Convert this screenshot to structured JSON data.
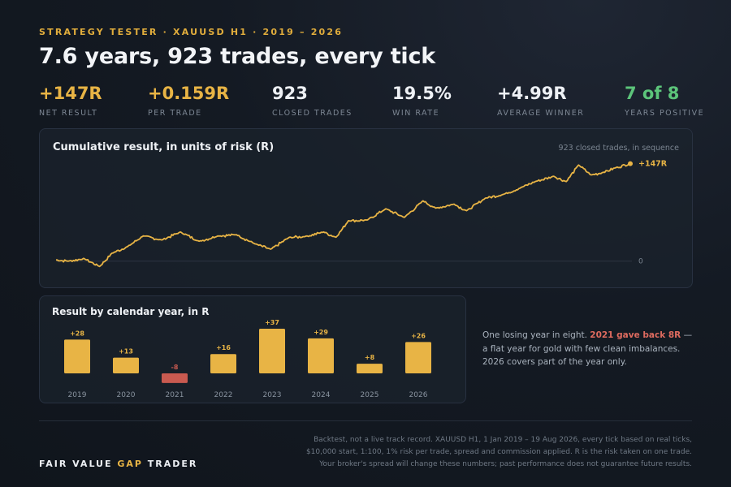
{
  "header": {
    "eyebrow": "STRATEGY TESTER  ·  XAUUSD H1  ·  2019 – 2026",
    "headline": "7.6 years, 923 trades, every tick"
  },
  "kpis": [
    {
      "value": "+147R",
      "label": "NET RESULT",
      "color": "#e8b445"
    },
    {
      "value": "+0.159R",
      "label": "PER TRADE",
      "color": "#e8b445"
    },
    {
      "value": "923",
      "label": "CLOSED TRADES",
      "color": "#eef1f5"
    },
    {
      "value": "19.5%",
      "label": "WIN RATE",
      "color": "#eef1f5"
    },
    {
      "value": "+4.99R",
      "label": "AVERAGE WINNER",
      "color": "#eef1f5"
    },
    {
      "value": "7 of 8",
      "label": "YEARS POSITIVE",
      "color": "#5cc47a"
    }
  ],
  "aside": {
    "before": "One losing year in eight. ",
    "highlight": "2021 gave back 8R",
    "after": " — a flat year for gold with few clean imbalances. 2026 covers part of the year only."
  },
  "footer": {
    "brand_a": "FAIR VALUE ",
    "brand_b": "GAP",
    "brand_c": " TRADER",
    "disclaimer": "Backtest, not a live track record. XAUUSD H1, 1 Jan 2019 – 19 Aug 2026, every tick based on real ticks, $10,000 start, 1:100, 1% risk per trade, spread and commission applied. R is the risk taken on one trade. Your broker's spread will change these numbers; past performance does not guarantee future results."
  },
  "chart_data": [
    {
      "type": "line",
      "title": "Cumulative result, in units of risk (R)",
      "note": "923 closed trades, in sequence",
      "end_label": "+147R",
      "zero_label": "0",
      "color": "#e8b445",
      "xlim": [
        0,
        923
      ],
      "ylim": [
        -15,
        160
      ],
      "x": [
        0,
        20,
        45,
        70,
        90,
        115,
        140,
        170,
        200,
        230,
        260,
        290,
        320,
        345,
        375,
        400,
        430,
        450,
        470,
        500,
        530,
        560,
        590,
        610,
        640,
        660,
        690,
        720,
        750,
        770,
        800,
        820,
        840,
        860,
        880,
        900,
        923
      ],
      "y": [
        2,
        0,
        4,
        -8,
        12,
        22,
        38,
        32,
        44,
        30,
        38,
        40,
        26,
        18,
        36,
        37,
        44,
        36,
        61,
        62,
        79,
        66,
        91,
        80,
        86,
        76,
        95,
        101,
        112,
        120,
        128,
        120,
        145,
        130,
        134,
        141,
        147
      ]
    },
    {
      "type": "bar",
      "title": "Result by calendar year, in R",
      "categories": [
        "2019",
        "2020",
        "2021",
        "2022",
        "2023",
        "2024",
        "2025",
        "2026"
      ],
      "values": [
        28,
        13,
        -8,
        16,
        37,
        29,
        8,
        26
      ],
      "value_labels": [
        "+28",
        "+13",
        "-8",
        "+16",
        "+37",
        "+29",
        "+8",
        "+26"
      ],
      "ylim": [
        -8,
        37
      ],
      "colors": {
        "positive": "#e8b445",
        "negative": "#c95a50"
      }
    }
  ]
}
